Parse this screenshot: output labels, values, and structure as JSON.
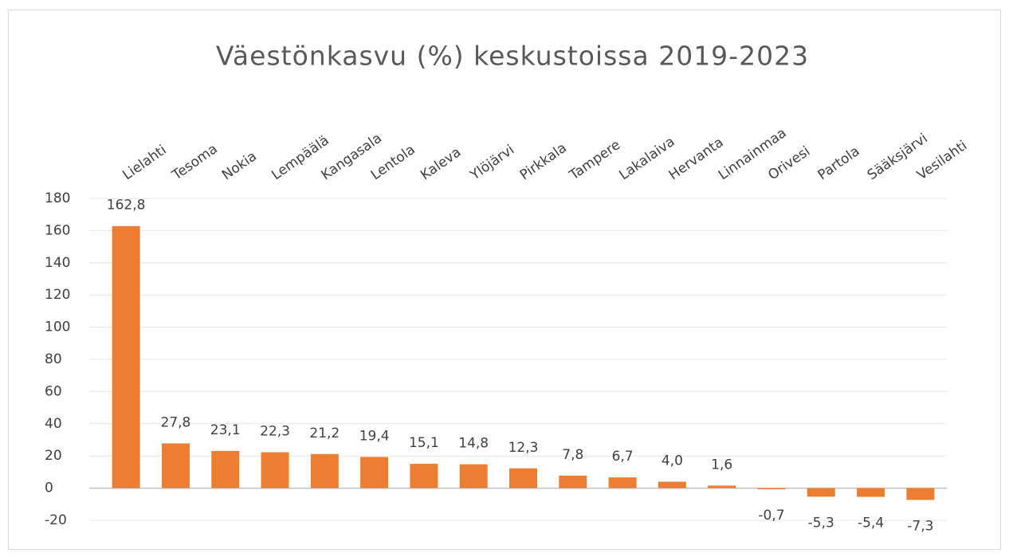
{
  "chart_data": {
    "type": "bar",
    "title": "Väestönkasvu (%) keskustoissa 2019-2023",
    "categories": [
      "Lielahti",
      "Tesoma",
      "Nokia",
      "Lempäälä",
      "Kangasala",
      "Lentola",
      "Kaleva",
      "Ylöjärvi",
      "Pirkkala",
      "Tampere",
      "Lakalaiva",
      "Hervanta",
      "Linnainmaa",
      "Orivesi",
      "Partola",
      "Sääksjärvi",
      "Vesilahti"
    ],
    "values": [
      162.8,
      27.8,
      23.1,
      22.3,
      21.2,
      19.4,
      15.1,
      14.8,
      12.3,
      7.8,
      6.7,
      4.0,
      1.6,
      -0.7,
      -5.3,
      -5.4,
      -7.3
    ],
    "value_labels": [
      "162,8",
      "27,8",
      "23,1",
      "22,3",
      "21,2",
      "19,4",
      "15,1",
      "14,8",
      "12,3",
      "7,8",
      "6,7",
      "4,0",
      "1,6",
      "-0,7",
      "-5,3",
      "-5,4",
      "-7,3"
    ],
    "color": "#ed7d31",
    "ylim": [
      -20,
      180
    ],
    "yticks": [
      -20,
      0,
      20,
      40,
      60,
      80,
      100,
      120,
      140,
      160,
      180
    ],
    "grid": true
  }
}
